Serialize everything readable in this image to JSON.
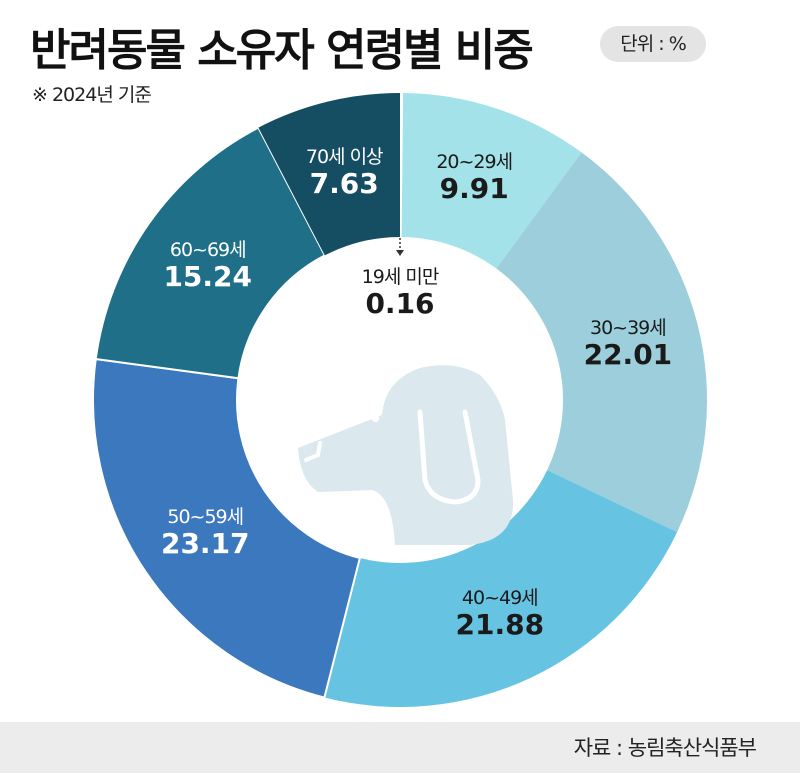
{
  "header": {
    "title": "반려동물 소유자 연령별 비중",
    "unit_badge": "단위 : %",
    "basis_note": "※ 2024년 기준"
  },
  "footer": {
    "source": "자료 : 농림축산식품부"
  },
  "center": {
    "icon": "dog-head-icon",
    "label": "19세 미만",
    "value": "0.16"
  },
  "segments": [
    {
      "label": "20~29세",
      "value": "9.91",
      "color": "#a2e2e8",
      "text_color": "dark"
    },
    {
      "label": "30~39세",
      "value": "22.01",
      "color": "#9ccfdb",
      "text_color": "dark"
    },
    {
      "label": "40~49세",
      "value": "21.88",
      "color": "#66c4e2",
      "text_color": "dark"
    },
    {
      "label": "50~59세",
      "value": "23.17",
      "color": "#3c78bd",
      "text_color": "light"
    },
    {
      "label": "60~69세",
      "value": "15.24",
      "color": "#1e6f87",
      "text_color": "light"
    },
    {
      "label": "70세 이상",
      "value": "7.63",
      "color": "#154e62",
      "text_color": "light"
    }
  ],
  "chart_data": {
    "type": "pie",
    "subtype": "donut",
    "title": "반려동물 소유자 연령별 비중",
    "subtitle": "※ 2024년 기준",
    "unit": "%",
    "categories": [
      "19세 미만",
      "20~29세",
      "30~39세",
      "40~49세",
      "50~59세",
      "60~69세",
      "70세 이상"
    ],
    "values": [
      0.16,
      9.91,
      22.01,
      21.88,
      23.17,
      15.24,
      7.63
    ],
    "colors": [
      "#ffffff",
      "#a2e2e8",
      "#9ccfdb",
      "#66c4e2",
      "#3c78bd",
      "#1e6f87",
      "#154e62"
    ],
    "start_angle": "12 o'clock",
    "direction": "clockwise",
    "source": "자료 : 농림축산식품부",
    "legend": "none (labels inside segments)"
  }
}
